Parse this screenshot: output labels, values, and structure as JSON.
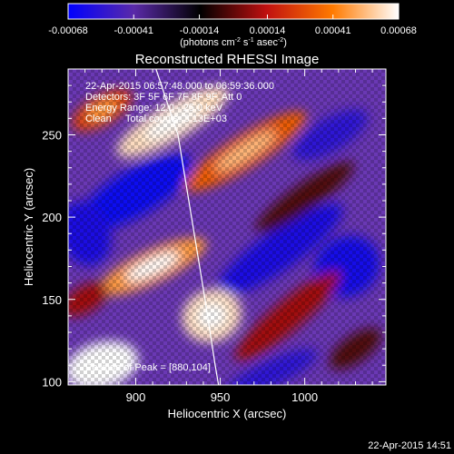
{
  "chart_data": {
    "type": "heatmap",
    "title": "Reconstructed RHESSI Image",
    "xlabel": "Heliocentric X (arcsec)",
    "ylabel": "Heliocentric Y (arcsec)",
    "xlim": [
      860,
      1048
    ],
    "ylim": [
      98,
      290
    ],
    "x_ticks": [
      "900",
      "950",
      "1000"
    ],
    "x_tick_values": [
      900,
      950,
      1000
    ],
    "y_ticks": [
      "100",
      "150",
      "200",
      "250"
    ],
    "y_tick_values": [
      100,
      150,
      200,
      250
    ],
    "colorbar": {
      "range": [
        -0.00068,
        0.00068
      ],
      "tick_labels": [
        "-0.00068",
        "-0.00041",
        "-0.00014",
        "0.00014",
        "0.00041",
        "0.00068"
      ],
      "tick_values": [
        -0.00068,
        -0.00041,
        -0.00014,
        0.00014,
        0.00041,
        0.00068
      ],
      "unit_label": "(photons cm",
      "unit_sup1": "-2",
      "unit_mid": " s",
      "unit_sup2": "-1",
      "unit_mid2": " asec",
      "unit_sup3": "-2",
      "unit_end": ")",
      "colors": [
        "#0000ff",
        "#5a2aa8",
        "#000000",
        "#c01010",
        "#ff7a00",
        "#ffffff"
      ]
    },
    "annotations": [
      "22-Apr-2015 06:57:48.000 to 06:59:36.000",
      "Detectors: 3F 5F 6F 7F 8F 9F, Att 0",
      "Energy Range: 12.0 - 25.0 keV",
      "Clean     Total counts: 3.13E+03"
    ],
    "peak_label": "Position of Peak = [880,104]",
    "peak": [
      880,
      104
    ],
    "limb_curve": [
      [
        912,
        290
      ],
      [
        925,
        250
      ],
      [
        933,
        200
      ],
      [
        941,
        150
      ],
      [
        947,
        110
      ],
      [
        949,
        98
      ]
    ],
    "bright_regions": [
      {
        "x": 922,
        "y": 258,
        "rx": 38,
        "ry": 11,
        "angle": -30,
        "level": 0.95
      },
      {
        "x": 965,
        "y": 240,
        "rx": 42,
        "ry": 10,
        "angle": -32,
        "level": 0.75
      },
      {
        "x": 880,
        "y": 265,
        "rx": 20,
        "ry": 9,
        "angle": -30,
        "level": 0.7
      },
      {
        "x": 1000,
        "y": 212,
        "rx": 35,
        "ry": 8,
        "angle": -35,
        "level": 0.55
      },
      {
        "x": 910,
        "y": 170,
        "rx": 35,
        "ry": 10,
        "angle": -25,
        "level": 0.85
      },
      {
        "x": 945,
        "y": 140,
        "rx": 18,
        "ry": 16,
        "angle": -20,
        "level": 0.95
      },
      {
        "x": 880,
        "y": 110,
        "rx": 22,
        "ry": 14,
        "angle": -15,
        "level": 1.0
      },
      {
        "x": 990,
        "y": 140,
        "rx": 40,
        "ry": 9,
        "angle": -40,
        "level": 0.6
      },
      {
        "x": 1030,
        "y": 120,
        "rx": 18,
        "ry": 8,
        "angle": -35,
        "level": 0.55
      },
      {
        "x": 870,
        "y": 150,
        "rx": 15,
        "ry": 8,
        "angle": -30,
        "level": 0.6
      }
    ],
    "dark_regions": [
      {
        "x": 900,
        "y": 215,
        "rx": 38,
        "ry": 14,
        "angle": -30,
        "level": 0.05
      },
      {
        "x": 985,
        "y": 180,
        "rx": 45,
        "ry": 12,
        "angle": -35,
        "level": 0.1
      },
      {
        "x": 1015,
        "y": 250,
        "rx": 25,
        "ry": 10,
        "angle": -30,
        "level": 0.15
      },
      {
        "x": 870,
        "y": 190,
        "rx": 15,
        "ry": 20,
        "angle": -20,
        "level": 0.1
      },
      {
        "x": 1025,
        "y": 170,
        "rx": 20,
        "ry": 18,
        "angle": -30,
        "level": 0.08
      },
      {
        "x": 980,
        "y": 105,
        "rx": 30,
        "ry": 8,
        "angle": -25,
        "level": 0.15
      }
    ]
  },
  "footer": {
    "timestamp": "22-Apr-2015 14:51"
  }
}
